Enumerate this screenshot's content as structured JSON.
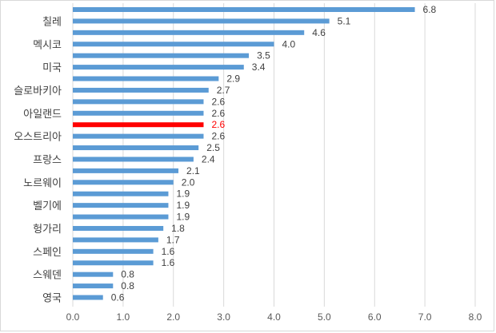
{
  "chart_data": {
    "type": "bar",
    "orientation": "horizontal",
    "title": "",
    "xlabel": "",
    "ylabel": "",
    "xlim": [
      0,
      8
    ],
    "x_ticks": [
      "0.0",
      "1.0",
      "2.0",
      "3.0",
      "4.0",
      "5.0",
      "6.0",
      "7.0",
      "8.0"
    ],
    "grid": true,
    "legend": "none",
    "bar_color": "#5B9BD5",
    "highlight_color": "#FF0000",
    "highlight_index": 10,
    "categories": [
      "",
      "칠레",
      "",
      "멕시코",
      "",
      "미국",
      "",
      "슬로바키아",
      "",
      "아일랜드",
      "",
      "오스트리아",
      "",
      "프랑스",
      "",
      "노르웨이",
      "",
      "벨기에",
      "",
      "헝가리",
      "",
      "스페인",
      "",
      "스웨덴",
      "",
      "영국"
    ],
    "values": [
      6.8,
      5.1,
      4.6,
      4.0,
      3.5,
      3.4,
      2.9,
      2.7,
      2.6,
      2.6,
      2.6,
      2.6,
      2.5,
      2.4,
      2.1,
      2.0,
      1.9,
      1.9,
      1.9,
      1.8,
      1.7,
      1.6,
      1.6,
      0.8,
      0.8,
      0.6
    ],
    "value_labels": [
      "6.8",
      "5.1",
      "4.6",
      "4.0",
      "3.5",
      "3.4",
      "2.9",
      "2.7",
      "2.6",
      "2.6",
      "2.6",
      "2.6",
      "2.5",
      "2.4",
      "2.1",
      "2.0",
      "1.9",
      "1.9",
      "1.9",
      "1.8",
      "1.7",
      "1.6",
      "1.6",
      "0.8",
      "0.8",
      "0.6"
    ]
  }
}
